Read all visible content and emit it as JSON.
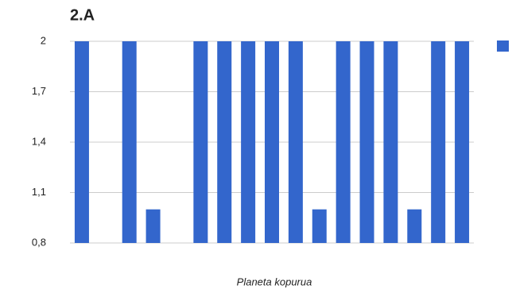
{
  "chart_data": {
    "type": "bar",
    "title": "2.A",
    "x_label": "Planeta kopurua",
    "categories": [
      null,
      null,
      null,
      null,
      null,
      null,
      null,
      null,
      null,
      null,
      null,
      null,
      null,
      null,
      null,
      null,
      null
    ],
    "values": [
      2,
      null,
      2,
      1,
      null,
      2,
      2,
      2,
      2,
      2,
      1,
      2,
      2,
      2,
      1,
      2,
      2
    ],
    "color": "#3366cc",
    "ylim": [
      0.8,
      2
    ],
    "yticks": [
      {
        "value": 0.8,
        "label": "0,8"
      },
      {
        "value": 1.1,
        "label": "1,1"
      },
      {
        "value": 1.4,
        "label": "1,4"
      },
      {
        "value": 1.7,
        "label": "1,7"
      },
      2
    ],
    "grid": true
  }
}
